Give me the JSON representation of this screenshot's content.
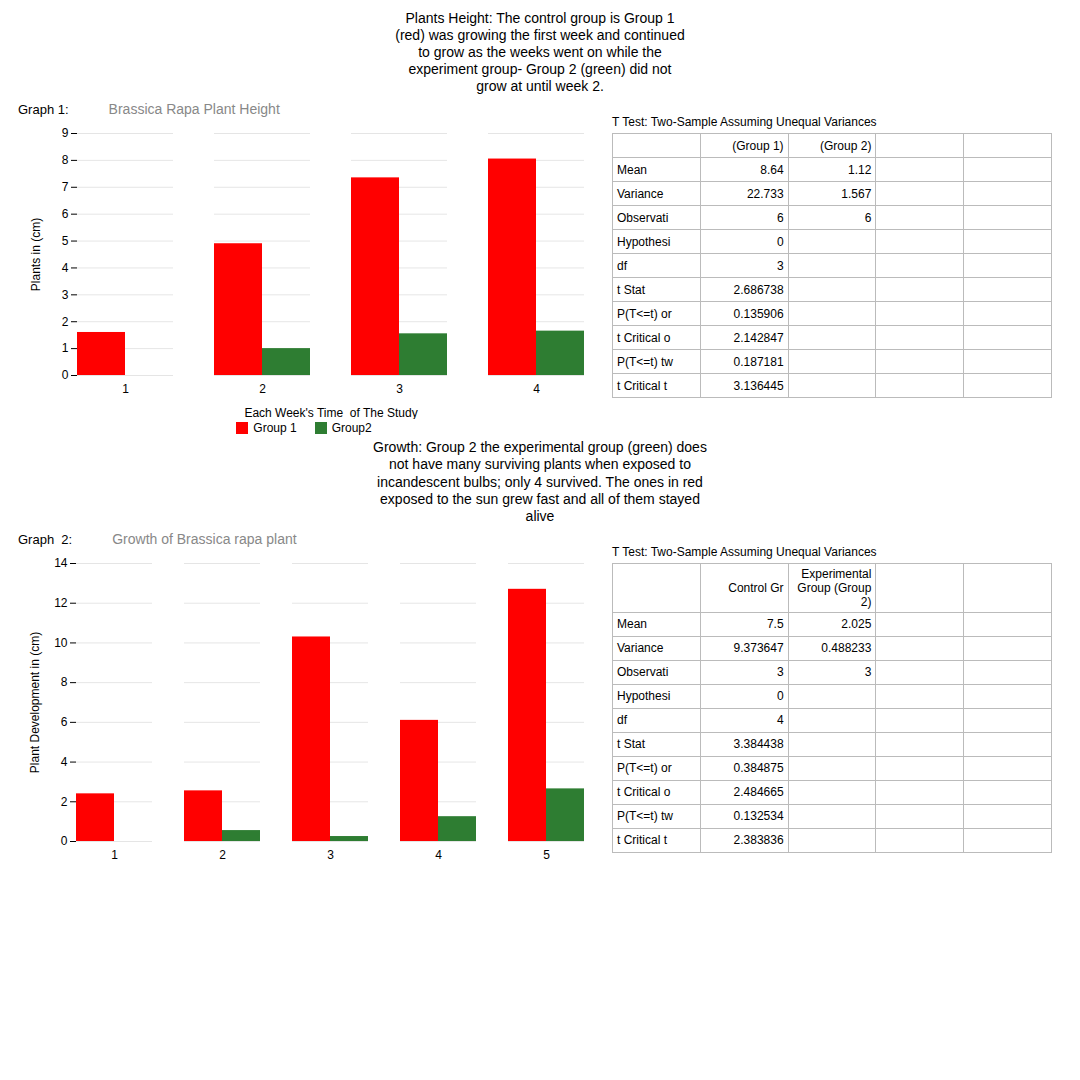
{
  "chart_data": [
    {
      "type": "bar",
      "title": "Plants Height: The control group is Group 1\n(red) was growing the first week and continued\nto grow as the weeks went on while the\nexperiment group- Group 2 (green) did not\ngrow at until week 2.",
      "subtitle": "Brassica Rapa Plant Height",
      "annotations": [
        "Graph 1:"
      ],
      "x_label": "Each Week's Time  of The Study",
      "y_label": "Plants in (cm)",
      "categories": [
        1,
        2,
        3,
        4
      ],
      "series": [
        {
          "name": "Group 1",
          "color": "#FF0000",
          "values": [
            1.6,
            4.9,
            7.35,
            8.05
          ]
        },
        {
          "name": "Group2",
          "color": "#2E7D32",
          "values": [
            0,
            1.0,
            1.55,
            1.65
          ]
        }
      ],
      "ylim": [
        0,
        9
      ],
      "yticks": [
        0,
        1,
        2,
        3,
        4,
        5,
        6,
        7,
        8,
        9
      ],
      "grid": true,
      "legend": "bottom"
    },
    {
      "type": "table",
      "title": "T Test: Two-Sample Assuming Unequal Variances",
      "columns": [
        null,
        "(Group 1)",
        "(Group 2)",
        null,
        null
      ],
      "rows": [
        [
          "Mean",
          "8.64",
          "1.12",
          null,
          null
        ],
        [
          "Variance",
          "22.733",
          "1.567",
          null,
          null
        ],
        [
          "Observati",
          "6",
          "6",
          null,
          null
        ],
        [
          "Hypothesi",
          "0",
          null,
          null,
          null
        ],
        [
          "df",
          "3",
          null,
          null,
          null
        ],
        [
          "t Stat",
          "2.686738",
          null,
          null,
          null
        ],
        [
          "P(T<=t) or",
          "0.135906",
          null,
          null,
          null
        ],
        [
          "t Critical o",
          "2.142847",
          null,
          null,
          null
        ],
        [
          "P(T<=t) tw",
          "0.187181",
          null,
          null,
          null
        ],
        [
          "t Critical t",
          "3.136445",
          null,
          null,
          null
        ]
      ]
    },
    {
      "type": "bar",
      "title": "Growth: Group 2 the experimental group (green) does\nnot have many surviving plants when exposed to\nincandescent bulbs; only 4 survived. The ones in red\nexposed to the sun grew fast and all of them stayed\nalive",
      "subtitle": "Growth of Brassica rapa plant",
      "annotations": [
        "Graph  2:"
      ],
      "y_label": "Plant Development in (cm)",
      "categories": [
        1,
        2,
        3,
        4,
        5
      ],
      "series": [
        {
          "color": "#FF0000",
          "values": [
            2.4,
            2.55,
            10.3,
            6.1,
            12.7
          ]
        },
        {
          "color": "#2E7D32",
          "values": [
            0,
            0.55,
            0.25,
            1.25,
            2.65
          ]
        }
      ],
      "ylim": [
        0,
        14
      ],
      "yticks": [
        0,
        2,
        4,
        6,
        8,
        10,
        12,
        14
      ],
      "grid": true
    },
    {
      "type": "table",
      "title": "T Test: Two-Sample Assuming Unequal Variances",
      "columns": [
        null,
        "Control Gr",
        "Experimental Group (Group 2)",
        null,
        null
      ],
      "rows": [
        [
          "Mean",
          "7.5",
          "2.025",
          null,
          null
        ],
        [
          "Variance",
          "9.373647",
          "0.488233",
          null,
          null
        ],
        [
          "Observati",
          "3",
          "3",
          null,
          null
        ],
        [
          "Hypothesi",
          "0",
          null,
          null,
          null
        ],
        [
          "df",
          "4",
          null,
          null,
          null
        ],
        [
          "t Stat",
          "3.384438",
          null,
          null,
          null
        ],
        [
          "P(T<=t) or",
          "0.384875",
          null,
          null,
          null
        ],
        [
          "t Critical o",
          "2.484665",
          null,
          null,
          null
        ],
        [
          "P(T<=t) tw",
          "0.132534",
          null,
          null,
          null
        ],
        [
          "t Critical t",
          "2.383836",
          null,
          null,
          null
        ]
      ]
    }
  ]
}
